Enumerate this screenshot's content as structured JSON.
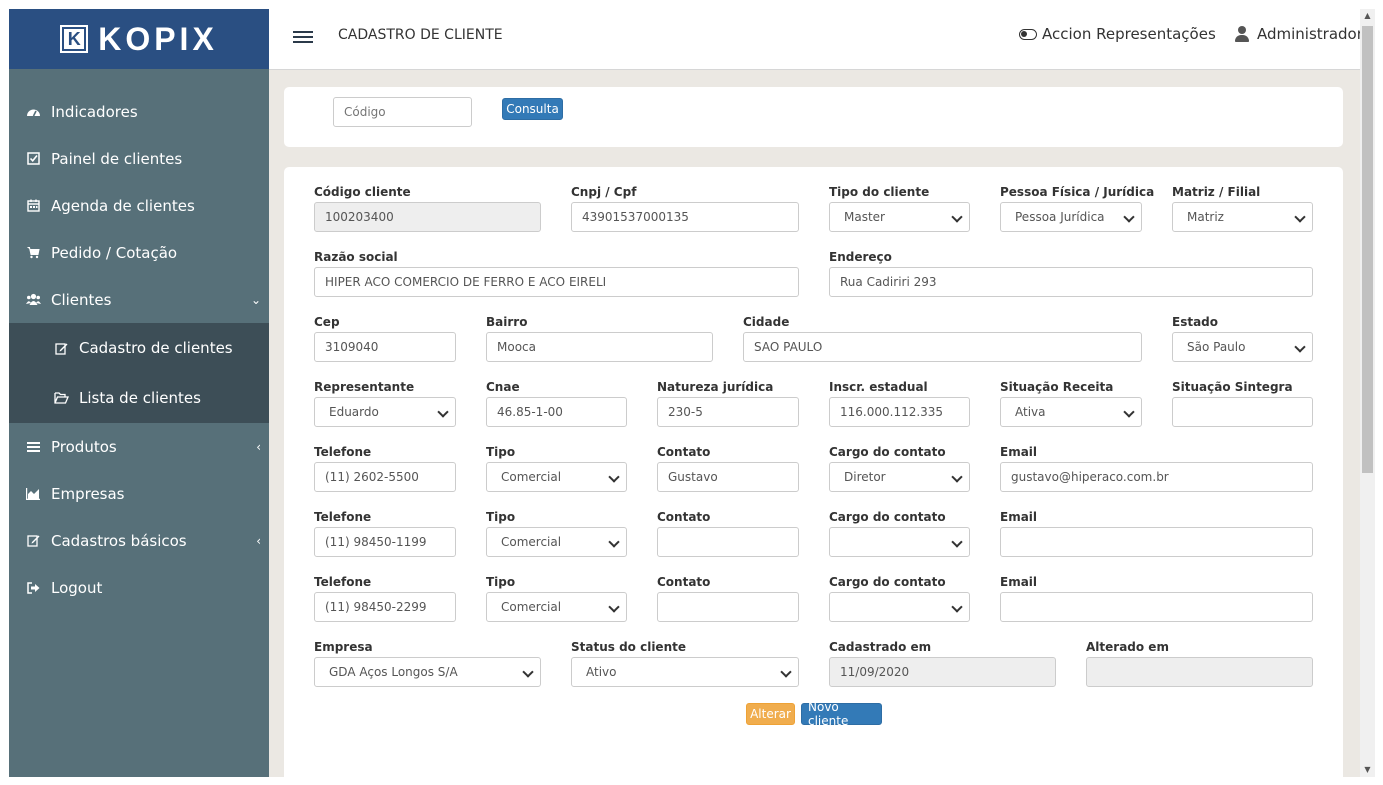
{
  "brand": {
    "name": "KOPIX",
    "mark": "K"
  },
  "sidebar": {
    "items": [
      {
        "label": "Indicadores",
        "icon": "dashboard-icon"
      },
      {
        "label": "Painel de clientes",
        "icon": "check-square-icon"
      },
      {
        "label": "Agenda de clientes",
        "icon": "calendar-icon"
      },
      {
        "label": "Pedido / Cotação",
        "icon": "cart-icon"
      },
      {
        "label": "Clientes",
        "icon": "users-icon"
      },
      {
        "label": "Produtos",
        "icon": "bars-icon"
      },
      {
        "label": "Empresas",
        "icon": "chart-icon"
      },
      {
        "label": "Cadastros básicos",
        "icon": "edit-icon"
      },
      {
        "label": "Logout",
        "icon": "logout-icon"
      }
    ],
    "submenu": [
      {
        "label": "Cadastro de clientes",
        "icon": "edit-icon"
      },
      {
        "label": "Lista de clientes",
        "icon": "folder-open-icon"
      }
    ]
  },
  "header": {
    "title": "CADASTRO DE CLIENTE",
    "representation": "Accion Representações",
    "user": "Administrador"
  },
  "search": {
    "placeholder": "Código",
    "button": "Consulta"
  },
  "form": {
    "codigo_cliente": {
      "label": "Código cliente",
      "value": "100203400"
    },
    "cnpj": {
      "label": "Cnpj / Cpf",
      "value": "43901537000135"
    },
    "tipo_cliente": {
      "label": "Tipo do cliente",
      "value": "Master"
    },
    "pessoa": {
      "label": "Pessoa Física / Jurídica",
      "value": "Pessoa Jurídica"
    },
    "matriz": {
      "label": "Matriz / Filial",
      "value": "Matriz"
    },
    "razao_social": {
      "label": "Razão social",
      "value": "HIPER ACO COMERCIO DE FERRO E ACO EIRELI"
    },
    "endereco": {
      "label": "Endereço",
      "value": "Rua Cadiriri 293"
    },
    "cep": {
      "label": "Cep",
      "value": "3109040"
    },
    "bairro": {
      "label": "Bairro",
      "value": "Mooca"
    },
    "cidade": {
      "label": "Cidade",
      "value": "SAO PAULO"
    },
    "estado": {
      "label": "Estado",
      "value": "São Paulo"
    },
    "representante": {
      "label": "Representante",
      "value": "Eduardo"
    },
    "cnae": {
      "label": "Cnae",
      "value": "46.85-1-00"
    },
    "natureza": {
      "label": "Natureza jurídica",
      "value": "230-5"
    },
    "inscr": {
      "label": "Inscr. estadual",
      "value": "116.000.112.335"
    },
    "situacao_receita": {
      "label": "Situação Receita",
      "value": "Ativa"
    },
    "situacao_sintegra": {
      "label": "Situação Sintegra",
      "value": ""
    },
    "contacts": [
      {
        "telefone": "(11) 2602-5500",
        "tipo": "Comercial",
        "contato": "Gustavo",
        "cargo": "Diretor",
        "email": "gustavo@hiperaco.com.br"
      },
      {
        "telefone": "(11) 98450-1199",
        "tipo": "Comercial",
        "contato": "",
        "cargo": "",
        "email": ""
      },
      {
        "telefone": "(11) 98450-2299",
        "tipo": "Comercial",
        "contato": "",
        "cargo": "",
        "email": ""
      }
    ],
    "contact_labels": {
      "telefone": "Telefone",
      "tipo": "Tipo",
      "contato": "Contato",
      "cargo": "Cargo do contato",
      "email": "Email"
    },
    "empresa": {
      "label": "Empresa",
      "value": "GDA Aços Longos S/A"
    },
    "status": {
      "label": "Status do cliente",
      "value": "Ativo"
    },
    "cadastrado": {
      "label": "Cadastrado em",
      "value": "11/09/2020"
    },
    "alterado": {
      "label": "Alterado em",
      "value": ""
    }
  },
  "actions": {
    "alterar": "Alterar",
    "novo": "Novo cliente"
  },
  "colors": {
    "sidebar": "#577079",
    "logo_bg": "#2a4f82",
    "submenu": "#3d4e57",
    "primary": "#337ab7",
    "warning": "#f0ad4e"
  }
}
